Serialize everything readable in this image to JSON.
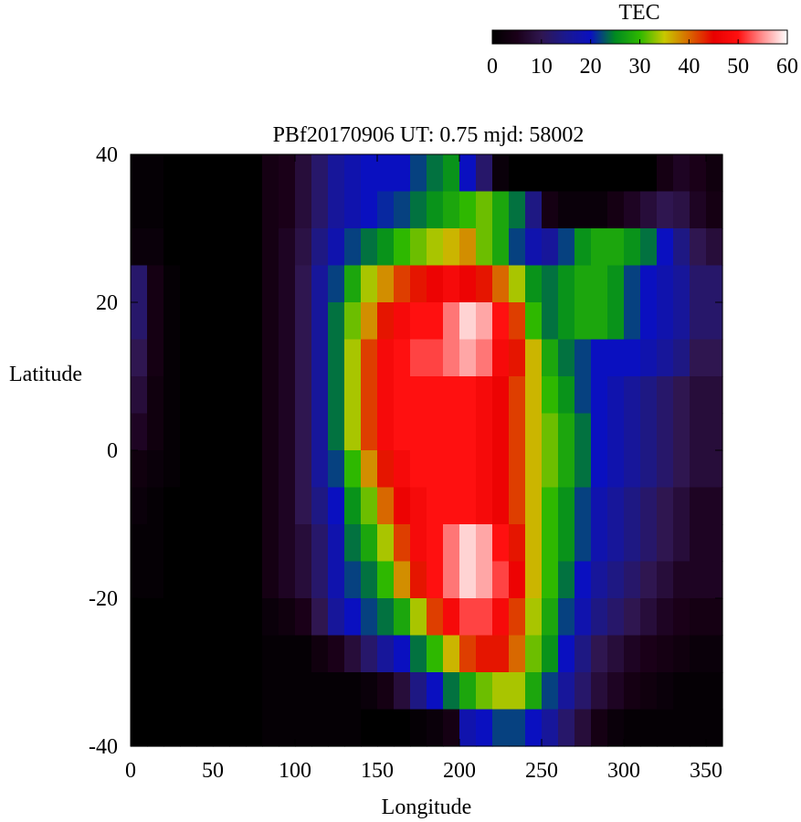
{
  "chart_data": {
    "type": "heatmap",
    "title": "PBf20170906  UT: 0.75  mjd: 58002",
    "xlabel": "Longitude",
    "ylabel": "Latitude",
    "xlim": [
      0,
      360
    ],
    "ylim": [
      -40,
      40
    ],
    "xticks": [
      0,
      50,
      100,
      150,
      200,
      250,
      300,
      350
    ],
    "yticks": [
      -40,
      -20,
      0,
      20,
      40
    ],
    "grid": false,
    "colorbar": {
      "label": "TEC",
      "range": [
        0,
        60
      ],
      "ticks": [
        0,
        10,
        20,
        30,
        40,
        50,
        60
      ],
      "stops": [
        {
          "v": 0,
          "color": "#000000"
        },
        {
          "v": 5,
          "color": "#1a0018"
        },
        {
          "v": 10,
          "color": "#2f1650"
        },
        {
          "v": 15,
          "color": "#1a1890"
        },
        {
          "v": 20,
          "color": "#0a10c0"
        },
        {
          "v": 25,
          "color": "#008a20"
        },
        {
          "v": 30,
          "color": "#2eb800"
        },
        {
          "v": 35,
          "color": "#c8c800"
        },
        {
          "v": 40,
          "color": "#d86800"
        },
        {
          "v": 45,
          "color": "#e80000"
        },
        {
          "v": 50,
          "color": "#ff1010"
        },
        {
          "v": 55,
          "color": "#ff9090"
        },
        {
          "v": 60,
          "color": "#ffffff"
        }
      ]
    },
    "grid_spec": {
      "lon_start": 0,
      "lon_step": 10,
      "lon_count": 36,
      "lat_start": -40,
      "lat_step": 5,
      "lat_count": 16
    },
    "tec_grid_lat_rows_north_to_south": [
      [
        1,
        1,
        0,
        0,
        0,
        0,
        0,
        0,
        4,
        5,
        8,
        12,
        16,
        18,
        20,
        20,
        20,
        22,
        24,
        26,
        20,
        12,
        2,
        0,
        0,
        0,
        0,
        0,
        0,
        0,
        0,
        0,
        4,
        6,
        5,
        3
      ],
      [
        1,
        1,
        0,
        0,
        0,
        0,
        0,
        0,
        4,
        5,
        8,
        12,
        16,
        18,
        20,
        21,
        22,
        24,
        26,
        28,
        30,
        32,
        28,
        24,
        14,
        4,
        2,
        2,
        2,
        4,
        6,
        8,
        10,
        9,
        6,
        4
      ],
      [
        2,
        2,
        0,
        0,
        0,
        0,
        0,
        0,
        4,
        6,
        9,
        14,
        18,
        22,
        24,
        26,
        30,
        32,
        34,
        36,
        38,
        32,
        28,
        22,
        18,
        16,
        22,
        26,
        28,
        28,
        26,
        24,
        20,
        14,
        10,
        8
      ],
      [
        12,
        4,
        1,
        0,
        0,
        0,
        0,
        0,
        4,
        6,
        10,
        16,
        22,
        28,
        34,
        38,
        42,
        44,
        46,
        48,
        46,
        44,
        40,
        34,
        26,
        24,
        26,
        28,
        28,
        26,
        22,
        20,
        18,
        16,
        12,
        12
      ],
      [
        12,
        4,
        1,
        0,
        0,
        0,
        0,
        0,
        4,
        6,
        10,
        16,
        24,
        32,
        38,
        44,
        48,
        50,
        50,
        54,
        58,
        56,
        50,
        42,
        30,
        24,
        26,
        28,
        28,
        26,
        22,
        20,
        18,
        16,
        12,
        12
      ],
      [
        10,
        4,
        1,
        0,
        0,
        0,
        0,
        0,
        4,
        6,
        10,
        16,
        24,
        34,
        42,
        48,
        50,
        52,
        52,
        54,
        56,
        54,
        48,
        44,
        36,
        28,
        24,
        22,
        20,
        20,
        20,
        18,
        16,
        14,
        10,
        10
      ],
      [
        8,
        3,
        1,
        0,
        0,
        0,
        0,
        0,
        4,
        6,
        10,
        16,
        24,
        34,
        42,
        48,
        50,
        50,
        50,
        50,
        50,
        48,
        46,
        42,
        36,
        30,
        26,
        22,
        20,
        18,
        16,
        14,
        12,
        10,
        8,
        8
      ],
      [
        6,
        3,
        1,
        0,
        0,
        0,
        0,
        0,
        4,
        6,
        10,
        16,
        24,
        34,
        42,
        48,
        50,
        50,
        50,
        50,
        50,
        48,
        46,
        42,
        36,
        32,
        28,
        24,
        20,
        18,
        16,
        14,
        12,
        10,
        8,
        8
      ],
      [
        3,
        2,
        1,
        0,
        0,
        0,
        0,
        0,
        4,
        6,
        10,
        16,
        22,
        30,
        38,
        44,
        48,
        50,
        50,
        50,
        50,
        48,
        46,
        42,
        36,
        32,
        28,
        24,
        20,
        18,
        16,
        14,
        12,
        10,
        8,
        8
      ],
      [
        2,
        1,
        0,
        0,
        0,
        0,
        0,
        0,
        4,
        6,
        10,
        14,
        20,
        26,
        32,
        40,
        46,
        48,
        50,
        50,
        50,
        48,
        46,
        42,
        36,
        30,
        26,
        22,
        18,
        16,
        14,
        12,
        10,
        8,
        6,
        6
      ],
      [
        1,
        1,
        0,
        0,
        0,
        0,
        0,
        0,
        4,
        6,
        8,
        12,
        18,
        24,
        28,
        34,
        42,
        48,
        50,
        54,
        58,
        56,
        50,
        44,
        36,
        30,
        26,
        22,
        18,
        16,
        14,
        12,
        10,
        8,
        6,
        6
      ],
      [
        1,
        1,
        0,
        0,
        0,
        0,
        0,
        0,
        4,
        6,
        8,
        12,
        18,
        22,
        24,
        30,
        38,
        44,
        50,
        54,
        58,
        56,
        52,
        46,
        36,
        30,
        24,
        20,
        16,
        14,
        12,
        10,
        8,
        6,
        6,
        6
      ],
      [
        0,
        0,
        0,
        0,
        0,
        0,
        0,
        0,
        2,
        3,
        5,
        10,
        16,
        20,
        22,
        24,
        28,
        34,
        42,
        48,
        52,
        52,
        48,
        42,
        34,
        28,
        22,
        18,
        14,
        12,
        10,
        8,
        6,
        5,
        4,
        4
      ],
      [
        0,
        0,
        0,
        0,
        0,
        0,
        0,
        0,
        1,
        1,
        1,
        3,
        5,
        8,
        12,
        16,
        20,
        24,
        30,
        36,
        42,
        44,
        44,
        40,
        32,
        26,
        20,
        14,
        10,
        8,
        6,
        5,
        4,
        3,
        2,
        2
      ],
      [
        0,
        0,
        0,
        0,
        0,
        0,
        0,
        0,
        1,
        1,
        1,
        1,
        1,
        1,
        2,
        4,
        8,
        14,
        20,
        24,
        28,
        32,
        34,
        34,
        28,
        22,
        16,
        12,
        8,
        6,
        4,
        3,
        2,
        1,
        1,
        1
      ],
      [
        0,
        0,
        0,
        0,
        0,
        0,
        0,
        0,
        1,
        1,
        1,
        1,
        1,
        1,
        0,
        0,
        0,
        1,
        2,
        4,
        18,
        20,
        22,
        22,
        20,
        16,
        12,
        8,
        4,
        2,
        1,
        1,
        1,
        1,
        1,
        1
      ]
    ]
  }
}
